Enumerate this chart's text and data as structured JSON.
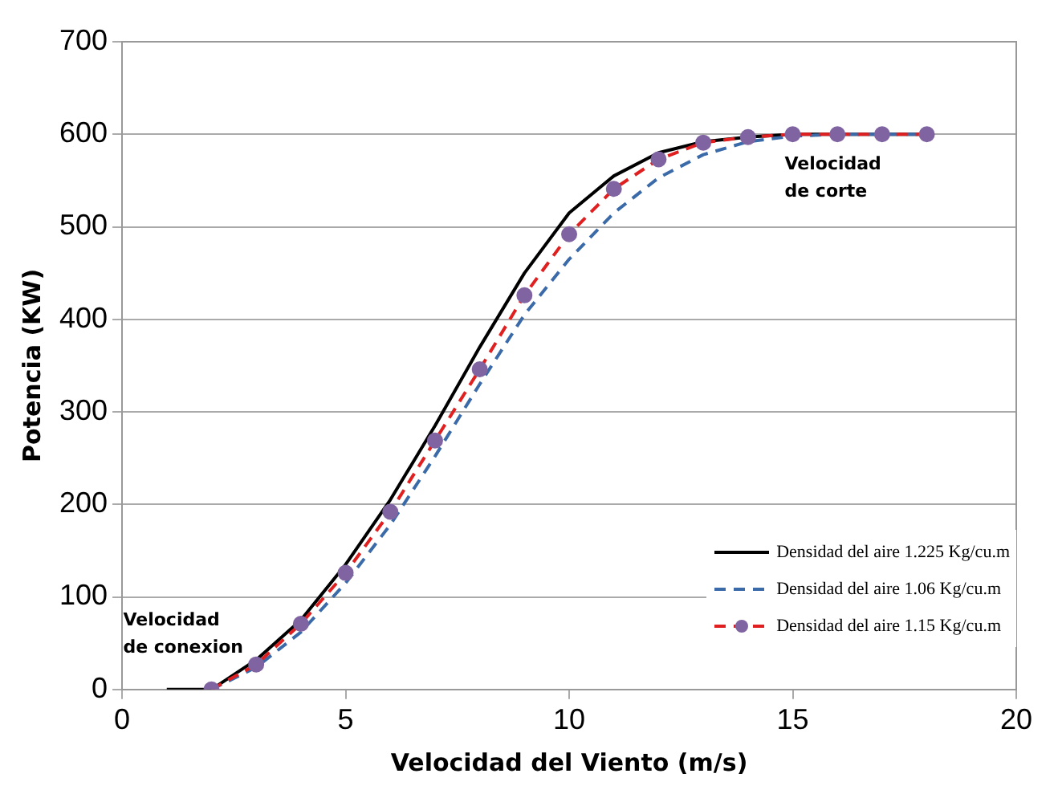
{
  "chart_data": {
    "type": "line",
    "xlabel": "Velocidad del Viento (m/s)",
    "ylabel": "Potencia (KW)",
    "xlim": [
      0,
      20
    ],
    "xticks": [
      0,
      5,
      10,
      15,
      20
    ],
    "ylim": [
      0,
      700
    ],
    "yticks": [
      0,
      100,
      200,
      300,
      400,
      500,
      600,
      700
    ],
    "grid": "y",
    "legend": "bottom right",
    "series": [
      {
        "name": "Densidad del aire 1.225 Kg/cu.m",
        "color": "#000000",
        "line_style": "solid",
        "marker": "none",
        "x": [
          1,
          2,
          3,
          4,
          5,
          6,
          7,
          8,
          9,
          10,
          11,
          12,
          13,
          14,
          15,
          16,
          17,
          18
        ],
        "values": [
          0,
          0,
          32,
          75,
          135,
          205,
          285,
          370,
          450,
          515,
          555,
          580,
          592,
          597,
          600,
          600,
          600,
          600
        ]
      },
      {
        "name": "Densidad del aire 1.06 Kg/cu.m",
        "color": "#3b6aa8",
        "line_style": "dashed",
        "marker": "none",
        "x": [
          2,
          3,
          4,
          5,
          6,
          7,
          8,
          9,
          10,
          11,
          12,
          13,
          14,
          15,
          16,
          17,
          18
        ],
        "values": [
          0,
          24,
          62,
          115,
          178,
          252,
          330,
          405,
          465,
          515,
          553,
          578,
          592,
          598,
          600,
          600,
          600
        ]
      },
      {
        "name": "Densidad del aire 1.15 Kg/cu.m",
        "color": "#e02020",
        "line_style": "dashed",
        "marker": "circle",
        "x": [
          2,
          3,
          4,
          5,
          6,
          7,
          8,
          9,
          10,
          11,
          12,
          13,
          14,
          15,
          16,
          17,
          18
        ],
        "values": [
          0,
          27,
          71,
          126,
          192,
          269,
          346,
          426,
          492,
          541,
          573,
          591,
          597,
          600,
          600,
          600,
          600
        ]
      }
    ],
    "annotations": [
      {
        "text": "Velocidad\nde conexion",
        "x": 2,
        "y": 0
      },
      {
        "text": "Velocidad\nde corte",
        "x": 15,
        "y": 600
      }
    ]
  }
}
